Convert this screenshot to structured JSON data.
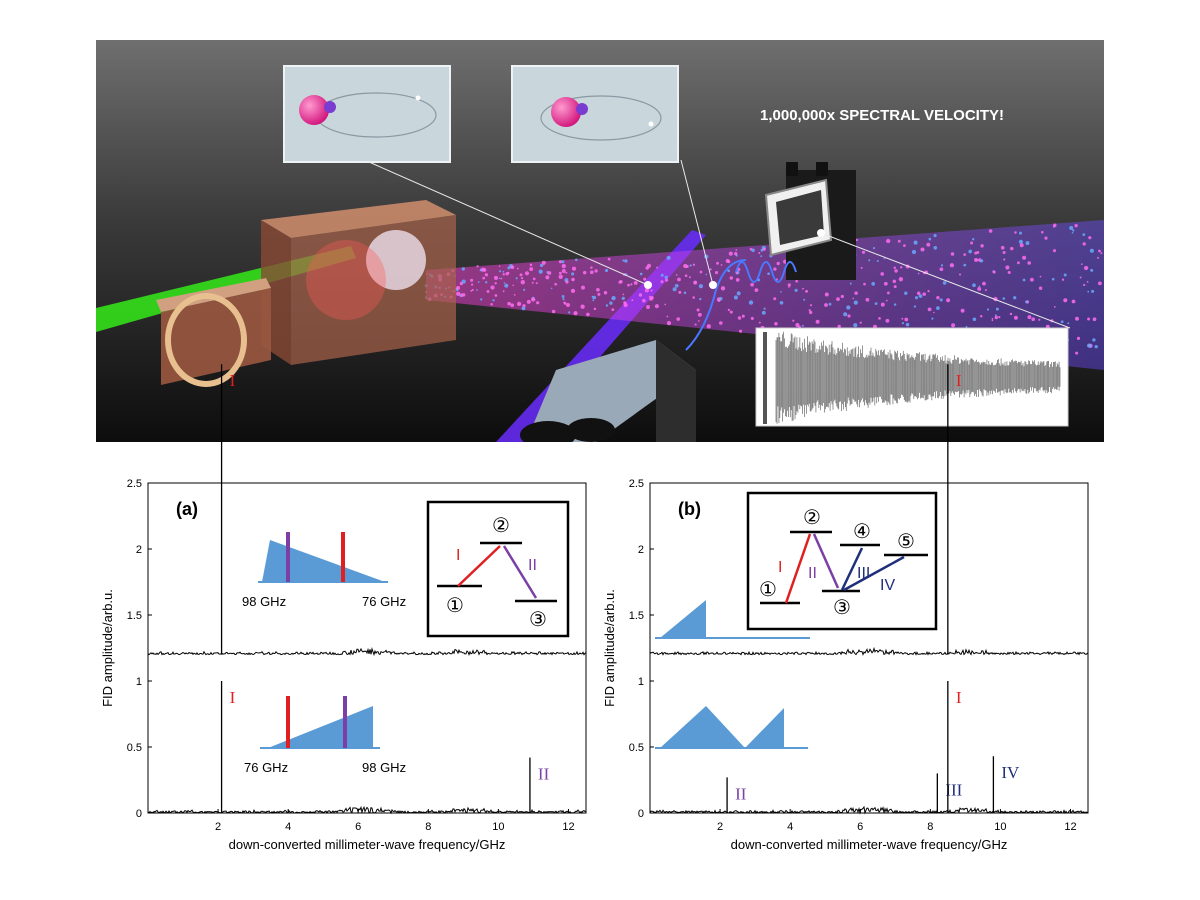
{
  "illustration": {
    "headline": "1,000,000x SPECTRAL VELOCITY!"
  },
  "chart_data": [
    {
      "type": "line",
      "panel_label": "(a)",
      "xlabel": "down-converted millimeter-wave frequency/GHz",
      "ylabel": "FID amplitude/arb.u.",
      "xlim": [
        0,
        12.5
      ],
      "ylim": [
        0,
        2.5
      ],
      "xticks": [
        "2",
        "4",
        "6",
        "8",
        "10",
        "12"
      ],
      "yticks": [
        "0",
        "0.5",
        "1",
        "1.5",
        "2",
        "2.5"
      ],
      "grid": false,
      "traces": [
        {
          "baseline": 1.2,
          "lines": [
            {
              "x": 2.1,
              "y": 2.2,
              "label": "I",
              "color": "#e02020"
            }
          ],
          "sweep_labels": [
            "98 GHz",
            "76 GHz"
          ]
        },
        {
          "baseline": 0,
          "lines": [
            {
              "x": 2.1,
              "y": 1.0,
              "label": "I",
              "color": "#e02020"
            },
            {
              "x": 10.9,
              "y": 0.42,
              "label": "II",
              "color": "#7b3fa6"
            }
          ],
          "sweep_labels": [
            "76 GHz",
            "98 GHz"
          ]
        }
      ],
      "energy_diagram": {
        "levels": [
          "①",
          "②",
          "③"
        ],
        "transitions": [
          {
            "label": "I",
            "color": "#e02020"
          },
          {
            "label": "II",
            "color": "#7b3fa6"
          }
        ]
      }
    },
    {
      "type": "line",
      "panel_label": "(b)",
      "xlabel": "down-converted millimeter-wave frequency/GHz",
      "ylabel": "FID amplitude/arb.u.",
      "xlim": [
        0,
        12.5
      ],
      "ylim": [
        0,
        2.5
      ],
      "xticks": [
        "2",
        "4",
        "6",
        "8",
        "10",
        "12"
      ],
      "yticks": [
        "0",
        "0.5",
        "1",
        "1.5",
        "2",
        "2.5"
      ],
      "grid": false,
      "traces": [
        {
          "baseline": 1.2,
          "lines": [
            {
              "x": 8.5,
              "y": 2.2,
              "label": "I",
              "color": "#e02020"
            }
          ]
        },
        {
          "baseline": 0,
          "lines": [
            {
              "x": 2.2,
              "y": 0.27,
              "label": "II",
              "color": "#7b3fa6"
            },
            {
              "x": 8.2,
              "y": 0.3,
              "label": "III",
              "color": "#1f2f7a"
            },
            {
              "x": 8.5,
              "y": 1.0,
              "label": "I",
              "color": "#e02020"
            },
            {
              "x": 9.8,
              "y": 0.43,
              "label": "IV",
              "color": "#1f2f7a"
            }
          ]
        }
      ],
      "energy_diagram": {
        "levels": [
          "①",
          "②",
          "③",
          "④",
          "⑤"
        ],
        "transitions": [
          {
            "label": "I",
            "color": "#e02020"
          },
          {
            "label": "II",
            "color": "#7b3fa6"
          },
          {
            "label": "III",
            "color": "#1f2f7a"
          },
          {
            "label": "IV",
            "color": "#1f2f7a"
          }
        ]
      }
    }
  ]
}
